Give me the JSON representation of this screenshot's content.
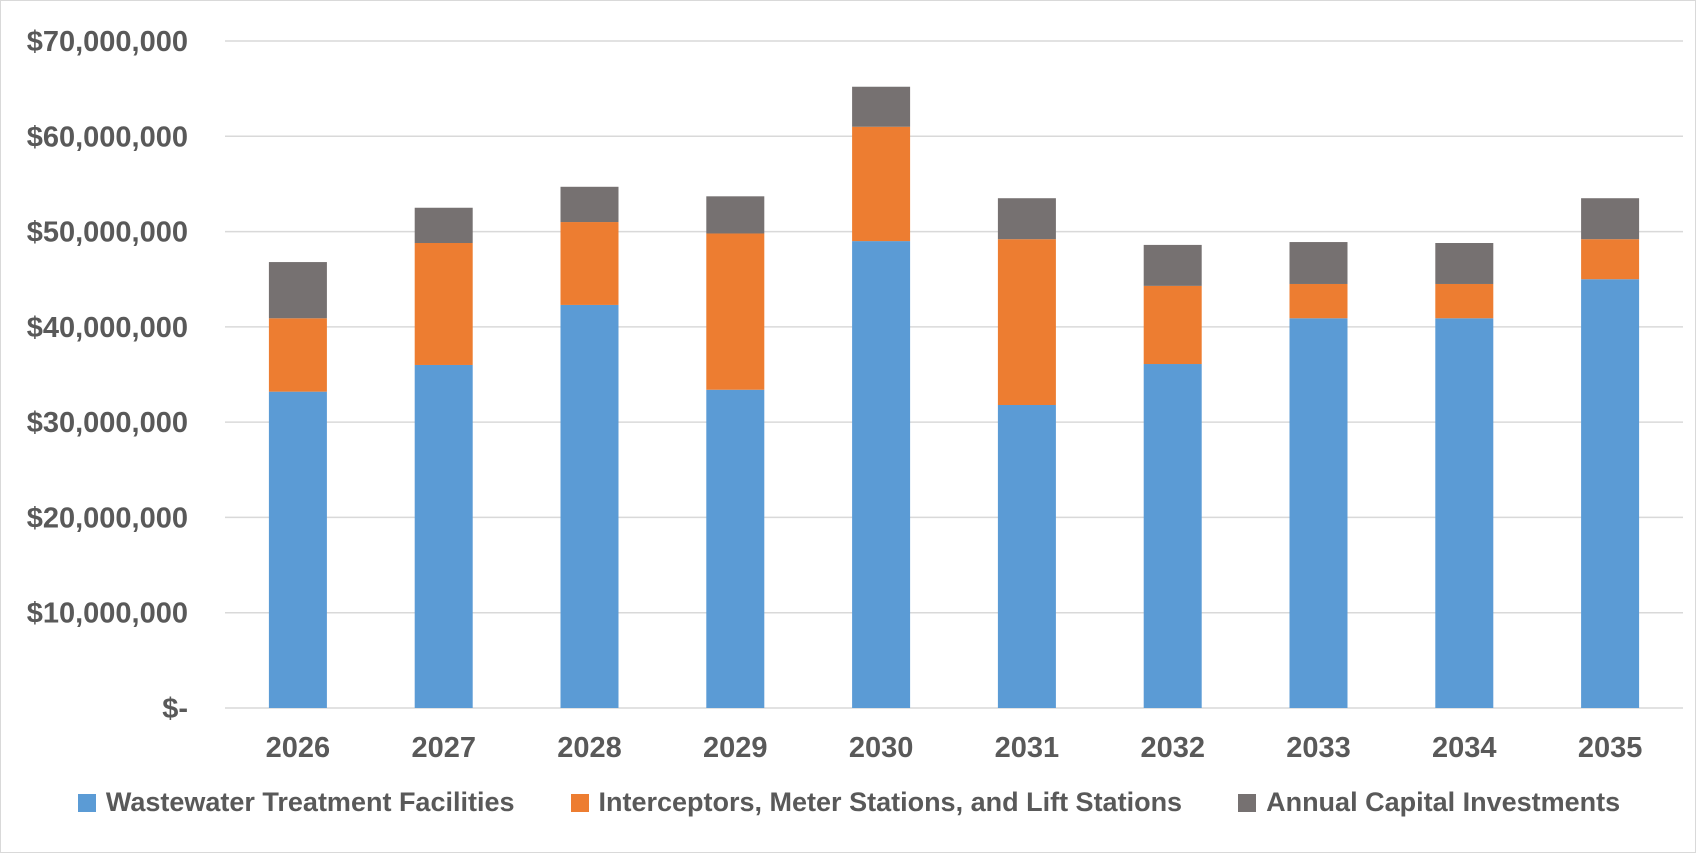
{
  "chart_data": {
    "type": "bar",
    "stacked": true,
    "title": "",
    "xlabel": "",
    "ylabel": "",
    "categories": [
      "2026",
      "2027",
      "2028",
      "2029",
      "2030",
      "2031",
      "2032",
      "2033",
      "2034",
      "2035"
    ],
    "series": [
      {
        "name": "Wastewater Treatment Facilities",
        "color": "#5b9bd5",
        "values": [
          33200000,
          36000000,
          42300000,
          33400000,
          49000000,
          31800000,
          36100000,
          40900000,
          40900000,
          45000000
        ]
      },
      {
        "name": "Interceptors, Meter Stations, and Lift Stations",
        "color": "#ed7d31",
        "values": [
          7700000,
          12800000,
          8700000,
          16400000,
          12000000,
          17400000,
          8200000,
          3600000,
          3600000,
          4200000
        ]
      },
      {
        "name": "Annual Capital Investments",
        "color": "#767171",
        "values": [
          5900000,
          3700000,
          3700000,
          3900000,
          4200000,
          4300000,
          4300000,
          4400000,
          4300000,
          4300000
        ]
      }
    ],
    "ylim": [
      0,
      70000000
    ],
    "yticks": [
      0,
      10000000,
      20000000,
      30000000,
      40000000,
      50000000,
      60000000,
      70000000
    ],
    "ytick_labels": [
      "$-",
      "$10,000,000",
      "$20,000,000",
      "$30,000,000",
      "$40,000,000",
      "$50,000,000",
      "$60,000,000",
      "$70,000,000"
    ],
    "grid": true,
    "legend_position": "bottom",
    "gridline_color": "#d9d9d9",
    "text_color": "#595959"
  }
}
